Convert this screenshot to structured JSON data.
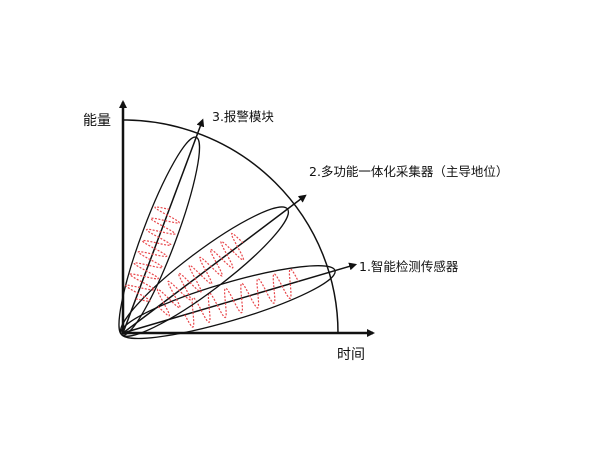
{
  "axes": {
    "y_label": "能量",
    "x_label": "时间"
  },
  "beams": [
    {
      "label": "1.智能检测传感器",
      "angle_deg": 16.4
    },
    {
      "label": "2.多功能一体化采集器（主导地位）",
      "angle_deg": 37
    },
    {
      "label": "3.报警模块",
      "angle_deg": 69.5
    }
  ],
  "colors": {
    "lines": "#111111",
    "wave": "#e8464a"
  }
}
